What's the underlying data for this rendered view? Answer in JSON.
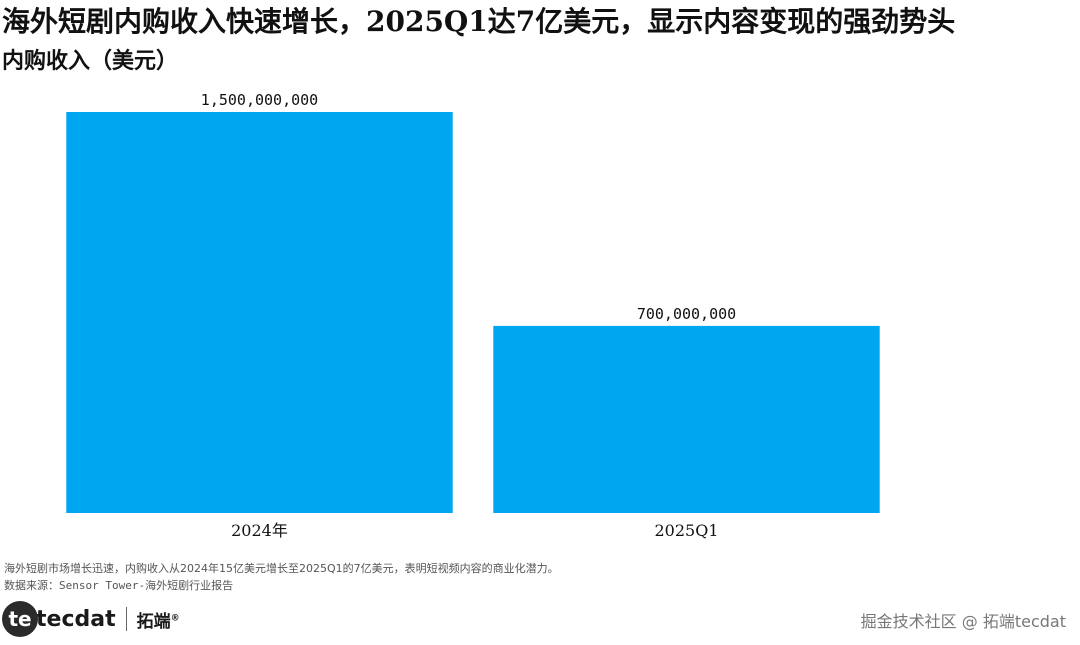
{
  "header": {
    "title": "海外短剧内购收入快速增长，2025Q1达7亿美元，显示内容变现的强劲势头",
    "subtitle": "内购收入（美元）"
  },
  "chart_data": {
    "type": "bar",
    "title": "海外短剧内购收入快速增长，2025Q1达7亿美元，显示内容变现的强劲势头",
    "subtitle": "内购收入（美元）",
    "categories": [
      "2024年",
      "2025Q1"
    ],
    "series": [
      {
        "values": [
          1500000000,
          700000000
        ],
        "color": "#00A6F0"
      }
    ],
    "data_labels": [
      "1,500,000,000",
      "700,000,000"
    ],
    "ylim": [
      0,
      1500000000
    ],
    "grid": false,
    "legend": false,
    "y_axis_visible": false
  },
  "footer": {
    "note": "海外短剧市场增长迅速，内购收入从2024年15亿美元增长至2025Q1的7亿美元，表明短视频内容的商业化潜力。",
    "source": "数据来源：Sensor Tower-海外短剧行业报告",
    "logo_text": "tecdat",
    "logo_cn": "拓端",
    "logo_mark": "®",
    "watermark": "掘金技术社区 @ 拓端tecdat"
  }
}
